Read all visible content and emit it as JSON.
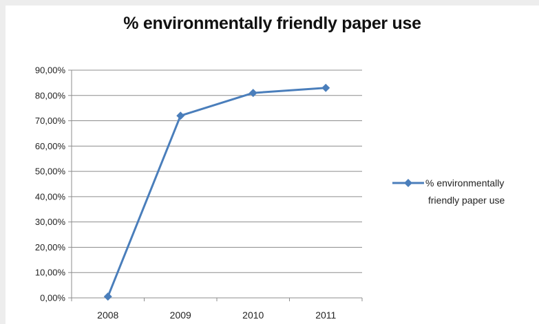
{
  "chart_data": {
    "type": "line",
    "title": "% environmentally friendly paper use",
    "xlabel": "",
    "ylabel": "",
    "categories": [
      "2008",
      "2009",
      "2010",
      "2011"
    ],
    "series": [
      {
        "name": "% environmentally friendly paper use",
        "values": [
          0.5,
          72,
          81,
          83
        ],
        "color": "#4a7ebb",
        "marker": "diamond"
      }
    ],
    "ylim": [
      0,
      90
    ],
    "ytick_step": 10,
    "ytick_labels": [
      "0,00%",
      "10,00%",
      "20,00%",
      "30,00%",
      "40,00%",
      "50,00%",
      "60,00%",
      "70,00%",
      "80,00%",
      "90,00%"
    ],
    "grid": true,
    "legend_position": "right",
    "legend_lines": [
      "% environmentally",
      "friendly paper use"
    ]
  }
}
